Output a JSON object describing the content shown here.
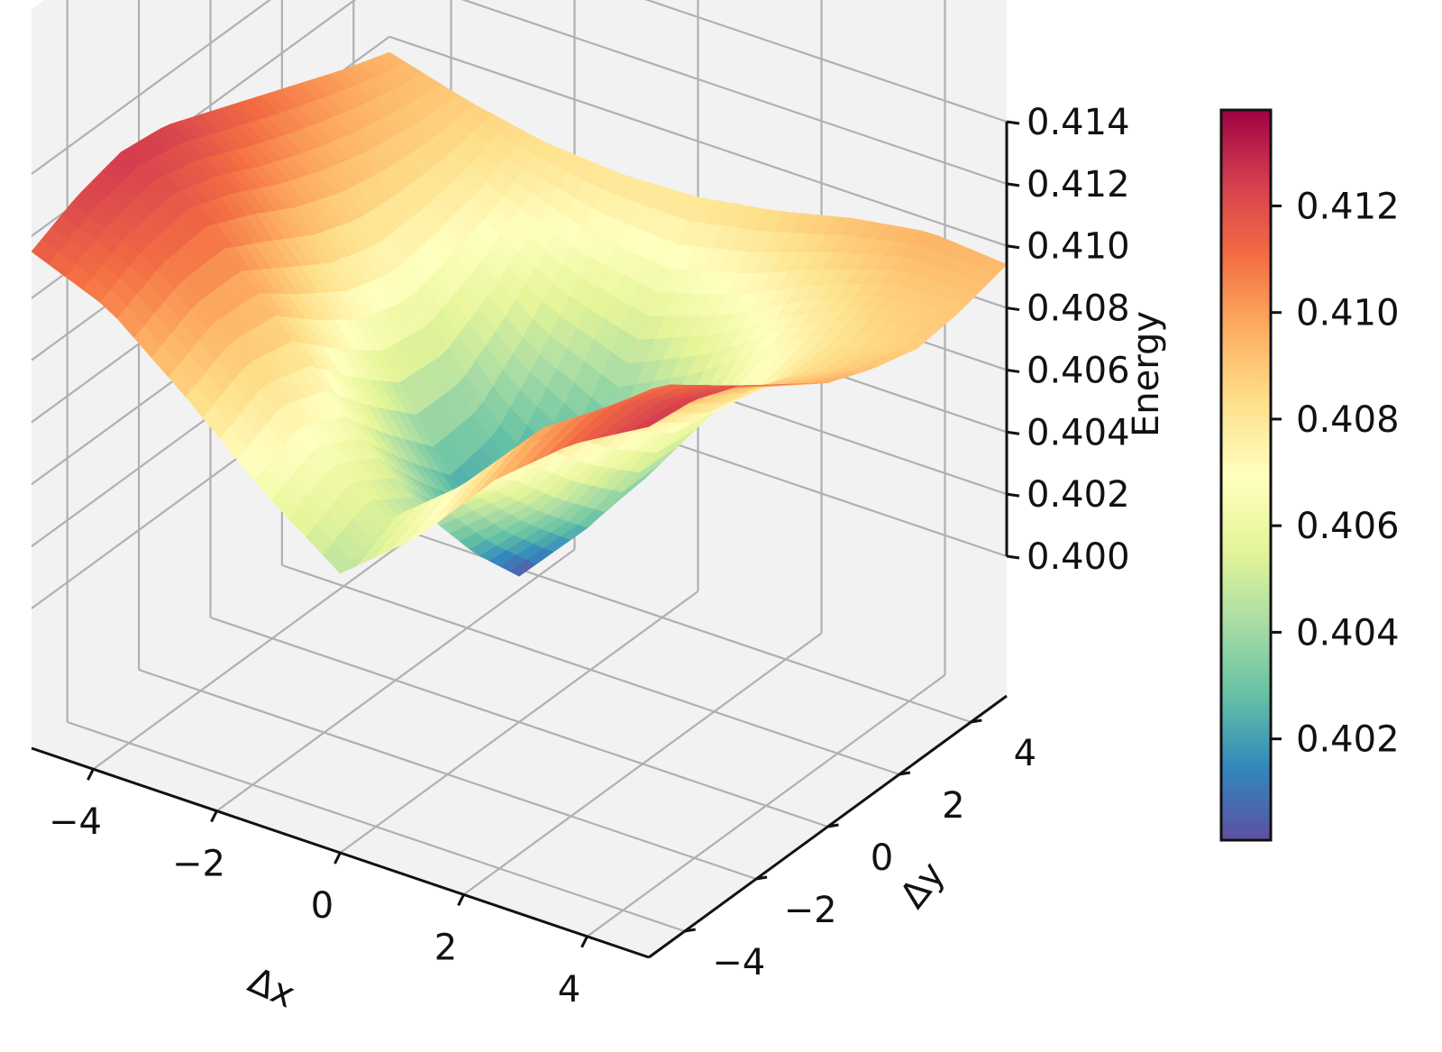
{
  "chart_data": {
    "type": "surface3d",
    "title": "",
    "xlabel": "Δx",
    "ylabel": "Δy",
    "zlabel": "Energy",
    "xlim": [
      -5,
      5
    ],
    "ylim": [
      -5,
      5
    ],
    "zlim": [
      0.4,
      0.414
    ],
    "x_ticks": [
      -4,
      -2,
      0,
      2,
      4
    ],
    "y_ticks": [
      -4,
      -2,
      0,
      2,
      4
    ],
    "z_ticks": [
      0.4,
      0.402,
      0.404,
      0.406,
      0.408,
      0.41,
      0.412,
      0.414
    ],
    "x_tick_labels": [
      "−4",
      "−2",
      "0",
      "2",
      "4"
    ],
    "y_tick_labels": [
      "−4",
      "−2",
      "0",
      "2",
      "4"
    ],
    "z_tick_labels": [
      "0.400",
      "0.402",
      "0.404",
      "0.406",
      "0.408",
      "0.410",
      "0.412",
      "0.414"
    ],
    "surface": {
      "x": [
        -5,
        -3.75,
        -2.5,
        -1.25,
        0,
        1.25,
        2.5,
        3.75,
        5
      ],
      "y": [
        -5,
        -3.75,
        -2.5,
        -1.25,
        0,
        1.25,
        2.5,
        3.75,
        5
      ],
      "z": [
        [
          0.4115,
          0.4105,
          0.4085,
          0.4063,
          0.4045,
          0.4065,
          0.4092,
          0.4112,
          0.4126
        ],
        [
          0.4122,
          0.4112,
          0.4092,
          0.407,
          0.4052,
          0.4072,
          0.4098,
          0.4114,
          0.4124
        ],
        [
          0.4126,
          0.4114,
          0.409,
          0.4062,
          0.4042,
          0.406,
          0.409,
          0.411,
          0.4118
        ],
        [
          0.4124,
          0.4108,
          0.4078,
          0.4045,
          0.402,
          0.4043,
          0.4076,
          0.4098,
          0.4108
        ],
        [
          0.4118,
          0.41,
          0.4068,
          0.403,
          0.4002,
          0.4028,
          0.4065,
          0.4088,
          0.4098
        ],
        [
          0.4112,
          0.4094,
          0.4064,
          0.4032,
          0.4012,
          0.403,
          0.4062,
          0.4082,
          0.4092
        ],
        [
          0.4106,
          0.409,
          0.4068,
          0.4046,
          0.4034,
          0.4048,
          0.4068,
          0.4082,
          0.4088
        ],
        [
          0.41,
          0.4088,
          0.4074,
          0.4063,
          0.4058,
          0.4066,
          0.4078,
          0.4088,
          0.409
        ],
        [
          0.4095,
          0.4088,
          0.4083,
          0.4081,
          0.4082,
          0.4086,
          0.4092,
          0.4096,
          0.4094
        ]
      ]
    },
    "colormap": "Spectral_r",
    "colorbar": {
      "range": [
        0.4001,
        0.4138
      ],
      "ticks": [
        0.402,
        0.404,
        0.406,
        0.408,
        0.41,
        0.412
      ],
      "tick_labels": [
        "0.402",
        "0.404",
        "0.406",
        "0.408",
        "0.410",
        "0.412"
      ],
      "colors": [
        "#5e4fa2",
        "#3288bd",
        "#66c2a5",
        "#abdda4",
        "#e6f598",
        "#ffffbf",
        "#fee08b",
        "#fdae61",
        "#f46d43",
        "#d53e4f",
        "#9e0142"
      ]
    },
    "grid": true,
    "pane_color": "#f2f2f2",
    "grid_color": "#b0b0b0"
  }
}
